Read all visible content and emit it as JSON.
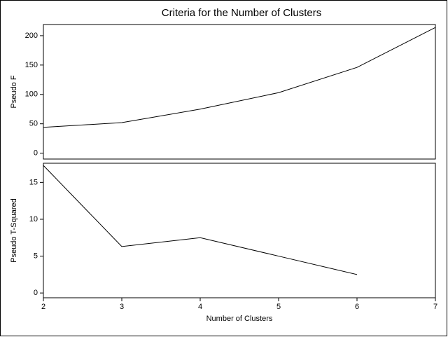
{
  "chart_data": [
    {
      "type": "line",
      "title": "Criteria for the Number of Clusters",
      "ylabel": "Pseudo F",
      "x": [
        2,
        3,
        4,
        5,
        6,
        7
      ],
      "values": [
        44,
        52,
        75,
        103,
        146,
        214
      ],
      "color": "#000000",
      "xlim": [
        2,
        7
      ],
      "ylim": [
        -10,
        219
      ],
      "yticks": [
        0,
        50,
        100,
        150,
        200
      ]
    },
    {
      "type": "line",
      "ylabel": "Pseudo T-Squared",
      "xlabel": "Number of Clusters",
      "x": [
        2,
        3,
        4,
        5,
        6,
        7
      ],
      "values": [
        17.3,
        6.3,
        7.5,
        5.0,
        2.5,
        null
      ],
      "color": "#000000",
      "xlim": [
        2,
        7
      ],
      "xticks": [
        2,
        3,
        4,
        5,
        6,
        7
      ],
      "ylim": [
        -0.65,
        17.6
      ],
      "yticks": [
        0,
        5,
        10,
        15
      ]
    }
  ]
}
